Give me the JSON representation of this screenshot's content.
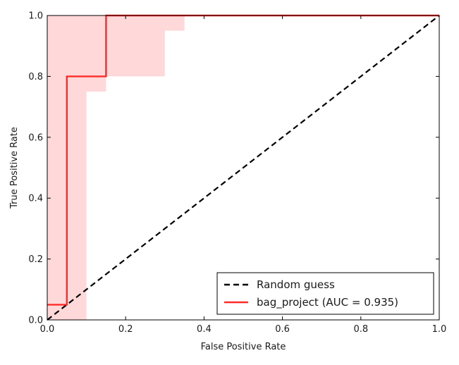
{
  "chart_data": {
    "type": "line",
    "title": "",
    "xlabel": "False Positive Rate",
    "ylabel": "True Positive Rate",
    "xlim": [
      0.0,
      1.0
    ],
    "ylim": [
      0.0,
      1.0
    ],
    "xticks": [
      "0.0",
      "0.2",
      "0.4",
      "0.6",
      "0.8",
      "1.0"
    ],
    "yticks": [
      "0.0",
      "0.2",
      "0.4",
      "0.6",
      "0.8",
      "1.0"
    ],
    "grid": false,
    "legend_position": "lower-right",
    "series": [
      {
        "name": "Random guess",
        "style": "dashed",
        "color": "#000000",
        "x": [
          0.0,
          1.0
        ],
        "y": [
          0.0,
          1.0
        ]
      },
      {
        "name": "bag_project (AUC = 0.935)",
        "style": "solid",
        "color": "#ff2a2a",
        "x": [
          0.0,
          0.05,
          0.05,
          0.05,
          0.15,
          0.15,
          1.0
        ],
        "y": [
          0.05,
          0.05,
          0.05,
          0.8,
          0.8,
          1.0,
          1.0
        ]
      }
    ],
    "confidence_band": {
      "color": "#ffcccc",
      "x": [
        0.0,
        0.05,
        0.05,
        0.1,
        0.1,
        0.15,
        0.15,
        0.3,
        0.3,
        0.35,
        0.35,
        1.0
      ],
      "lower": [
        0.0,
        0.0,
        0.0,
        0.0,
        0.75,
        0.75,
        0.8,
        0.8,
        0.95,
        0.95,
        1.0,
        1.0
      ],
      "upper": [
        1.0,
        1.0,
        1.0,
        1.0,
        1.0,
        1.0,
        1.0,
        1.0,
        1.0,
        1.0,
        1.0,
        1.0
      ]
    }
  }
}
